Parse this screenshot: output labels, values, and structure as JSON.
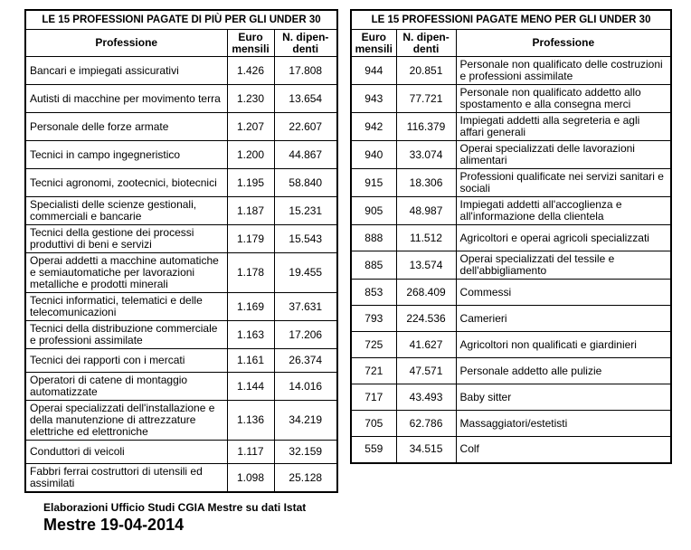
{
  "colors": {
    "text": "#000000",
    "border": "#000000",
    "background": "#ffffff"
  },
  "left_table": {
    "title": "LE 15 PROFESSIONI PAGATE DI PIÙ PER GLI UNDER 30",
    "columns": [
      "Professione",
      "Euro mensili",
      "N. dipen-denti"
    ],
    "rows": [
      {
        "professione": "Bancari e impiegati assicurativi",
        "euro": "1.426",
        "dipendenti": "17.808"
      },
      {
        "professione": "Autisti di macchine per movimento terra",
        "euro": "1.230",
        "dipendenti": "13.654"
      },
      {
        "professione": "Personale delle forze armate",
        "euro": "1.207",
        "dipendenti": "22.607"
      },
      {
        "professione": "Tecnici in campo ingegneristico",
        "euro": "1.200",
        "dipendenti": "44.867"
      },
      {
        "professione": "Tecnici agronomi, zootecnici, biotecnici",
        "euro": "1.195",
        "dipendenti": "58.840"
      },
      {
        "professione": "Specialisti delle scienze gestionali, commerciali e bancarie",
        "euro": "1.187",
        "dipendenti": "15.231"
      },
      {
        "professione": "Tecnici della gestione dei processi produttivi di beni e servizi",
        "euro": "1.179",
        "dipendenti": "15.543"
      },
      {
        "professione": "Operai addetti a macchine automatiche e semiautomatiche per lavorazioni metalliche e prodotti minerali",
        "euro": "1.178",
        "dipendenti": "19.455"
      },
      {
        "professione": "Tecnici informatici, telematici e delle telecomunicazioni",
        "euro": "1.169",
        "dipendenti": "37.631"
      },
      {
        "professione": "Tecnici della distribuzione commerciale e professioni assimilate",
        "euro": "1.163",
        "dipendenti": "17.206"
      },
      {
        "professione": "Tecnici dei rapporti con i mercati",
        "euro": "1.161",
        "dipendenti": "26.374"
      },
      {
        "professione": "Operatori di catene di montaggio automatizzate",
        "euro": "1.144",
        "dipendenti": "14.016"
      },
      {
        "professione": "Operai specializzati dell'installazione e della manutenzione di attrezzature elettriche ed elettroniche",
        "euro": "1.136",
        "dipendenti": "34.219"
      },
      {
        "professione": "Conduttori di veicoli",
        "euro": "1.117",
        "dipendenti": "32.159"
      },
      {
        "professione": "Fabbri ferrai costruttori di utensili ed assimilati",
        "euro": "1.098",
        "dipendenti": "25.128"
      }
    ]
  },
  "right_table": {
    "title": "LE 15 PROFESSIONI PAGATE MENO PER GLI UNDER 30",
    "columns": [
      "Euro mensili",
      "N. dipen-denti",
      "Professione"
    ],
    "rows": [
      {
        "euro": "944",
        "dipendenti": "20.851",
        "professione": "Personale non qualificato delle costruzioni e professioni assimilate"
      },
      {
        "euro": "943",
        "dipendenti": "77.721",
        "professione": "Personale non qualificato addetto allo spostamento e alla consegna merci"
      },
      {
        "euro": "942",
        "dipendenti": "116.379",
        "professione": "Impiegati addetti alla segreteria e agli affari generali"
      },
      {
        "euro": "940",
        "dipendenti": "33.074",
        "professione": "Operai specializzati delle lavorazioni alimentari"
      },
      {
        "euro": "915",
        "dipendenti": "18.306",
        "professione": "Professioni qualificate nei servizi sanitari e sociali"
      },
      {
        "euro": "905",
        "dipendenti": "48.987",
        "professione": "Impiegati addetti all'accoglienza e all'informazione della clientela"
      },
      {
        "euro": "888",
        "dipendenti": "11.512",
        "professione": "Agricoltori e operai agricoli specializzati"
      },
      {
        "euro": "885",
        "dipendenti": "13.574",
        "professione": "Operai specializzati del tessile e dell'abbigliamento"
      },
      {
        "euro": "853",
        "dipendenti": "268.409",
        "professione": "Commessi"
      },
      {
        "euro": "793",
        "dipendenti": "224.536",
        "professione": "Camerieri"
      },
      {
        "euro": "725",
        "dipendenti": "41.627",
        "professione": "Agricoltori non qualificati e giardinieri"
      },
      {
        "euro": "721",
        "dipendenti": "47.571",
        "professione": "Personale addetto alle pulizie"
      },
      {
        "euro": "717",
        "dipendenti": "43.493",
        "professione": "Baby sitter"
      },
      {
        "euro": "705",
        "dipendenti": "62.786",
        "professione": "Massaggiatori/estetisti"
      },
      {
        "euro": "559",
        "dipendenti": "34.515",
        "professione": "Colf"
      }
    ]
  },
  "footer": {
    "source_note": "Elaborazioni Ufficio Studi CGIA Mestre su dati Istat",
    "date_line": "Mestre 19-04-2014"
  }
}
